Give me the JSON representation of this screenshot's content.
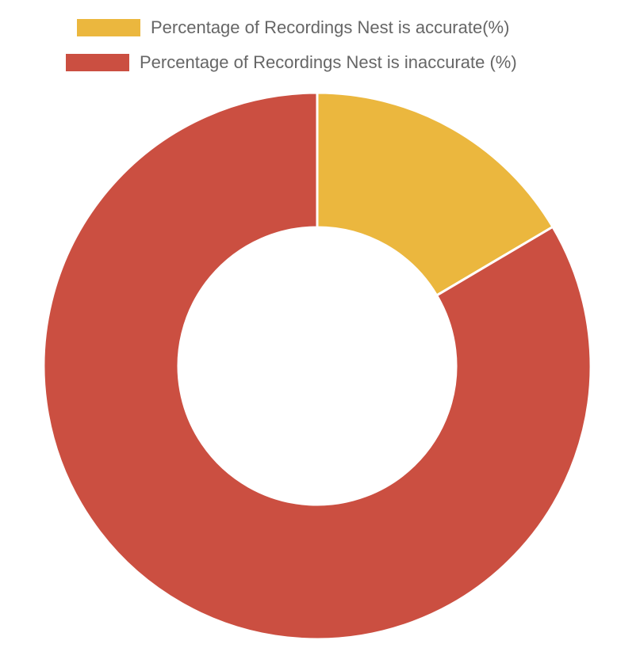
{
  "chart_data": {
    "type": "pie",
    "variant": "doughnut",
    "categories": [
      "Percentage of Recordings Nest is accurate(%)",
      "Percentage of Recordings Nest is inaccurate (%)"
    ],
    "values": [
      16.5,
      83.5
    ],
    "colors": [
      "#EBB73E",
      "#CB4F41"
    ],
    "legend_position": "top",
    "title": ""
  }
}
